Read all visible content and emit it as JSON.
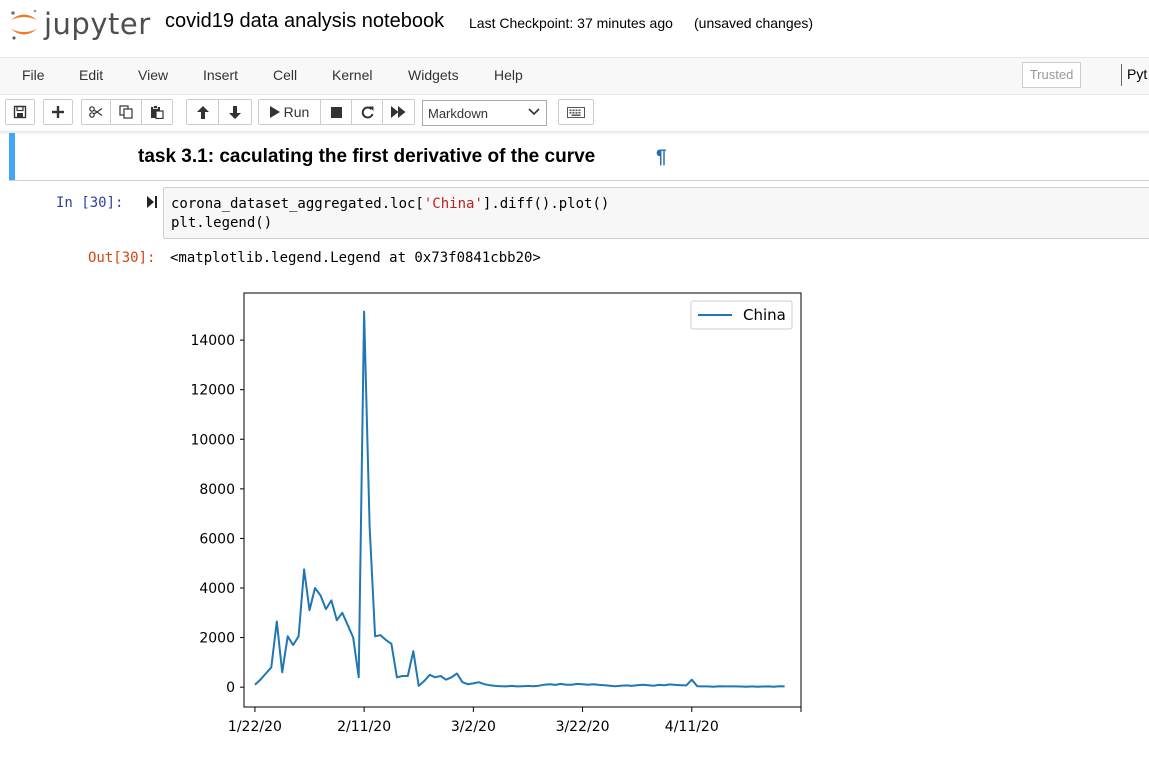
{
  "header": {
    "logo_text": "jupyter",
    "notebook_title": "covid19 data analysis notebook",
    "checkpoint": "Last Checkpoint: 37 minutes ago",
    "status": "(unsaved changes)"
  },
  "menubar": {
    "items": [
      "File",
      "Edit",
      "View",
      "Insert",
      "Cell",
      "Kernel",
      "Widgets",
      "Help"
    ],
    "trusted": "Trusted",
    "kernel": "Pyt"
  },
  "toolbar": {
    "run_label": "Run",
    "cell_type": "Markdown",
    "icons": [
      "save-icon",
      "plus-icon",
      "cut-icon",
      "copy-icon",
      "paste-icon",
      "arrow-up-icon",
      "arrow-down-icon",
      "play-icon",
      "stop-icon",
      "restart-icon",
      "fast-forward-icon",
      "keyboard-icon"
    ]
  },
  "markdown_cell": {
    "heading": "task 3.1: caculating the first derivative of the curve",
    "anchor": "¶"
  },
  "code_cell": {
    "prompt_in": "In [30]:",
    "line1_pre": "corona_dataset_aggregated.loc[",
    "line1_str": "'China'",
    "line1_post": "].diff().plot()",
    "line2": "plt.legend()",
    "prompt_out": "Out[30]:",
    "output_text": "<matplotlib.legend.Legend at 0x73f0841cbb20>"
  },
  "chart_data": {
    "type": "line",
    "title": "",
    "xlabel": "",
    "ylabel": "",
    "x_start": "1/22/20",
    "x_ticks": [
      "1/22/20",
      "2/11/20",
      "3/2/20",
      "3/22/20",
      "4/11/20"
    ],
    "x_tick_days": [
      0,
      20,
      40,
      60,
      80
    ],
    "xlim_days": [
      -2,
      100
    ],
    "y_ticks": [
      0,
      2000,
      4000,
      6000,
      8000,
      10000,
      12000,
      14000
    ],
    "ylim": [
      -800,
      15900
    ],
    "legend": {
      "position": "top-right",
      "entries": [
        "China"
      ]
    },
    "line_color": "#1f77b4",
    "grid": false,
    "series": [
      {
        "name": "China",
        "values": [
          100,
          300,
          550,
          800,
          2650,
          600,
          2050,
          1700,
          2050,
          4750,
          3100,
          4000,
          3700,
          3150,
          3500,
          2700,
          3000,
          2500,
          2000,
          400,
          15150,
          6500,
          2050,
          2100,
          1900,
          1750,
          400,
          450,
          450,
          1450,
          50,
          250,
          500,
          400,
          450,
          300,
          400,
          550,
          200,
          120,
          150,
          200,
          120,
          80,
          50,
          40,
          30,
          50,
          30,
          40,
          50,
          40,
          60,
          100,
          120,
          90,
          130,
          100,
          100,
          130,
          120,
          100,
          120,
          90,
          80,
          60,
          40,
          60,
          70,
          50,
          80,
          100,
          80,
          60,
          90,
          80,
          110,
          90,
          80,
          70,
          300,
          40,
          30,
          30,
          20,
          40,
          30,
          30,
          30,
          25,
          20,
          30,
          20,
          25,
          30,
          20,
          35,
          30
        ]
      }
    ]
  }
}
